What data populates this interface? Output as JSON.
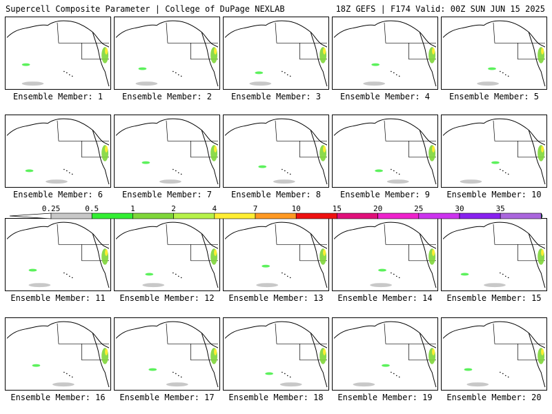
{
  "header": {
    "left_title": "Supercell Composite Parameter | College of DuPage NEXLAB",
    "right_title": "18Z GEFS | F174 Valid: 00Z SUN JUN 15 2025"
  },
  "panels": [
    {
      "label": "Ensemble Member: 1"
    },
    {
      "label": "Ensemble Member: 2"
    },
    {
      "label": "Ensemble Member: 3"
    },
    {
      "label": "Ensemble Member: 4"
    },
    {
      "label": "Ensemble Member: 5"
    },
    {
      "label": "Ensemble Member: 6"
    },
    {
      "label": "Ensemble Member: 7"
    },
    {
      "label": "Ensemble Member: 8"
    },
    {
      "label": "Ensemble Member: 9"
    },
    {
      "label": "Ensemble Member: 10"
    },
    {
      "label": "Ensemble Member: 11"
    },
    {
      "label": "Ensemble Member: 12"
    },
    {
      "label": "Ensemble Member: 13"
    },
    {
      "label": "Ensemble Member: 14"
    },
    {
      "label": "Ensemble Member: 15"
    },
    {
      "label": "Ensemble Member: 16"
    },
    {
      "label": "Ensemble Member: 17"
    },
    {
      "label": "Ensemble Member: 18"
    },
    {
      "label": "Ensemble Member: 19"
    },
    {
      "label": "Ensemble Member: 20"
    }
  ],
  "legend": {
    "ticks": [
      "0.25",
      "0.5",
      "1",
      "2",
      "4",
      "7",
      "10",
      "15",
      "20",
      "25",
      "30",
      "35"
    ],
    "colors": [
      "#c8c8c8",
      "#33ee33",
      "#7fd63a",
      "#b6f24a",
      "#ffee33",
      "#ff9922",
      "#ee1111",
      "#e0107a",
      "#ee22cc",
      "#cc33ee",
      "#8822ee",
      "#aa66dd",
      "#33dddd"
    ]
  }
}
